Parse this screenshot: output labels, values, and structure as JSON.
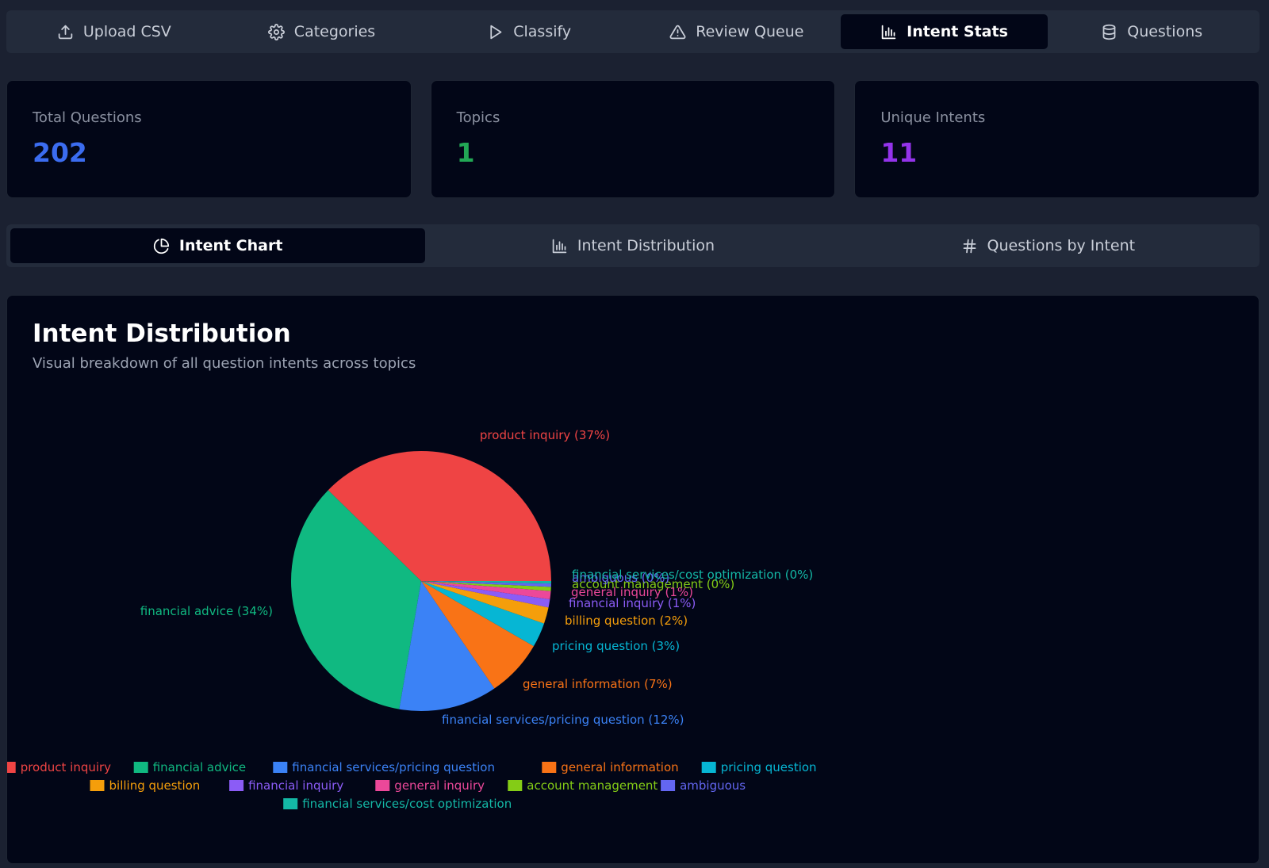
{
  "nav": {
    "tabs": [
      {
        "label": "Upload CSV",
        "icon": "upload-icon",
        "active": false
      },
      {
        "label": "Categories",
        "icon": "gear-icon",
        "active": false
      },
      {
        "label": "Classify",
        "icon": "play-icon",
        "active": false
      },
      {
        "label": "Review Queue",
        "icon": "warning-icon",
        "active": false
      },
      {
        "label": "Intent Stats",
        "icon": "bar-chart-icon",
        "active": true
      },
      {
        "label": "Questions",
        "icon": "database-icon",
        "active": false
      }
    ]
  },
  "stats": [
    {
      "label": "Total Questions",
      "value": "202",
      "color": "#3b6cf0"
    },
    {
      "label": "Topics",
      "value": "1",
      "color": "#22a855"
    },
    {
      "label": "Unique Intents",
      "value": "11",
      "color": "#9333ea"
    }
  ],
  "subtabs": [
    {
      "label": "Intent Chart",
      "icon": "pie-chart-icon",
      "active": true
    },
    {
      "label": "Intent Distribution",
      "icon": "bar-chart-icon",
      "active": false
    },
    {
      "label": "Questions by Intent",
      "icon": "hash-icon",
      "active": false
    }
  ],
  "panel": {
    "title": "Intent Distribution",
    "subtitle": "Visual breakdown of all question intents across topics"
  },
  "chart_data": {
    "type": "pie",
    "legend_position": "bottom",
    "slices": [
      {
        "name": "product inquiry",
        "value": 37,
        "label": "product inquiry (37%)",
        "color": "#ef4444"
      },
      {
        "name": "financial advice",
        "value": 34,
        "label": "financial advice (34%)",
        "color": "#10b981"
      },
      {
        "name": "financial services/pricing question",
        "value": 12,
        "label": "financial services/pricing question (12%)",
        "color": "#3b82f6"
      },
      {
        "name": "general information",
        "value": 7,
        "label": "general information (7%)",
        "color": "#f97316"
      },
      {
        "name": "pricing question",
        "value": 3,
        "label": "pricing question (3%)",
        "color": "#06b6d4"
      },
      {
        "name": "billing question",
        "value": 2,
        "label": "billing question (2%)",
        "color": "#f59e0b"
      },
      {
        "name": "financial inquiry",
        "value": 1,
        "label": "financial inquiry (1%)",
        "color": "#8b5cf6"
      },
      {
        "name": "general inquiry",
        "value": 1,
        "label": "general inquiry (1%)",
        "color": "#ec4899"
      },
      {
        "name": "account management",
        "value": 0.5,
        "label": "account management (0%)",
        "color": "#84cc16"
      },
      {
        "name": "ambiguous",
        "value": 0.4,
        "label": "ambiguous (0%)",
        "color": "#6366f1"
      },
      {
        "name": "financial services/cost optimization",
        "value": 0.3,
        "label": "financial services/cost optimization (0%)",
        "color": "#14b8a6"
      }
    ]
  }
}
